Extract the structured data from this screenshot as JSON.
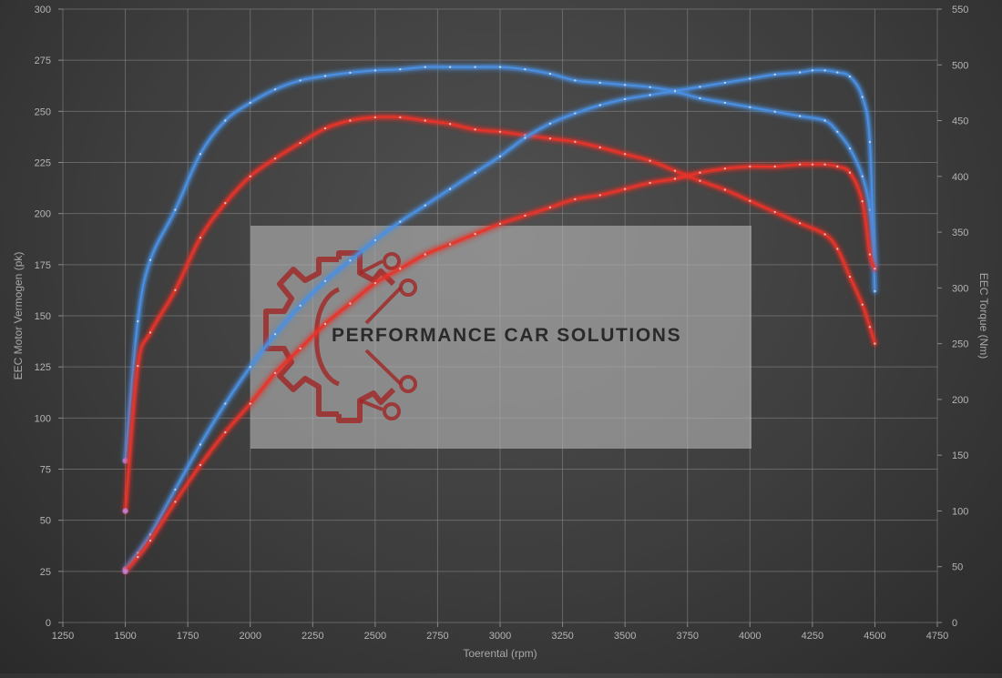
{
  "chart_data": {
    "type": "line",
    "xlabel": "Toerental (rpm)",
    "ylabel_left": "EEC Motor Vermogen (pk)",
    "ylabel_right": "EEC Torque (Nm)",
    "xlim": [
      1250,
      4750
    ],
    "x_ticks": [
      1250,
      1500,
      1750,
      2000,
      2250,
      2500,
      2750,
      3000,
      3250,
      3500,
      3750,
      4000,
      4250,
      4500,
      4750
    ],
    "ylim_left": [
      0,
      300
    ],
    "y_ticks_left": [
      0,
      25,
      50,
      75,
      100,
      125,
      150,
      175,
      200,
      225,
      250,
      275,
      300
    ],
    "ylim_right": [
      0,
      550
    ],
    "y_ticks_right": [
      0,
      50,
      100,
      150,
      200,
      250,
      300,
      350,
      400,
      450,
      500,
      550
    ],
    "grid": true,
    "series": [
      {
        "axis": "right",
        "color": "#4a90e2",
        "x": [
          1500,
          1550,
          1600,
          1700,
          1800,
          1900,
          2000,
          2100,
          2200,
          2300,
          2400,
          2500,
          2600,
          2700,
          2800,
          2900,
          3000,
          3100,
          3200,
          3300,
          3400,
          3500,
          3600,
          3700,
          3800,
          3900,
          4000,
          4100,
          4200,
          4300,
          4350,
          4400,
          4450,
          4480,
          4500
        ],
        "values": [
          145,
          270,
          325,
          370,
          420,
          450,
          466,
          478,
          486,
          490,
          493,
          495,
          496,
          498,
          498,
          498,
          498,
          496,
          492,
          486,
          484,
          482,
          480,
          476,
          470,
          466,
          462,
          458,
          454,
          450,
          440,
          425,
          400,
          370,
          320
        ]
      },
      {
        "axis": "right",
        "color": "#e8332a",
        "x": [
          1500,
          1550,
          1600,
          1700,
          1800,
          1900,
          2000,
          2100,
          2200,
          2300,
          2400,
          2500,
          2600,
          2700,
          2800,
          2900,
          3000,
          3100,
          3200,
          3300,
          3400,
          3500,
          3600,
          3700,
          3800,
          3900,
          4000,
          4100,
          4200,
          4300,
          4350,
          4400,
          4450,
          4480,
          4500
        ],
        "values": [
          100,
          230,
          260,
          298,
          345,
          376,
          400,
          416,
          430,
          443,
          450,
          453,
          453,
          450,
          447,
          442,
          440,
          437,
          434,
          431,
          426,
          420,
          414,
          405,
          396,
          388,
          378,
          368,
          358,
          348,
          335,
          310,
          285,
          265,
          250
        ]
      },
      {
        "axis": "left",
        "color": "#4a90e2",
        "x": [
          1500,
          1550,
          1600,
          1700,
          1800,
          1900,
          2000,
          2100,
          2200,
          2300,
          2400,
          2500,
          2600,
          2700,
          2800,
          2900,
          3000,
          3100,
          3200,
          3300,
          3400,
          3500,
          3600,
          3700,
          3800,
          3900,
          4000,
          4100,
          4200,
          4250,
          4300,
          4350,
          4400,
          4450,
          4480,
          4500
        ],
        "values": [
          26,
          34,
          43,
          65,
          87,
          107,
          125,
          141,
          155,
          167,
          177,
          187,
          196,
          204,
          212,
          220,
          228,
          237,
          244,
          249,
          253,
          256,
          258,
          260,
          262,
          264,
          266,
          268,
          269,
          270,
          270,
          269,
          267,
          257,
          235,
          162
        ]
      },
      {
        "axis": "left",
        "color": "#e8332a",
        "x": [
          1500,
          1550,
          1600,
          1700,
          1800,
          1900,
          2000,
          2100,
          2200,
          2300,
          2400,
          2500,
          2600,
          2700,
          2800,
          2900,
          3000,
          3100,
          3200,
          3300,
          3400,
          3500,
          3600,
          3700,
          3800,
          3900,
          4000,
          4100,
          4200,
          4250,
          4300,
          4350,
          4400,
          4450,
          4480,
          4500
        ],
        "values": [
          25,
          32,
          40,
          59,
          77,
          93,
          107,
          122,
          134,
          146,
          156,
          166,
          173,
          180,
          185,
          190,
          195,
          199,
          203,
          207,
          209,
          212,
          215,
          217,
          220,
          222,
          223,
          223,
          224,
          224,
          224,
          223,
          220,
          206,
          180,
          173
        ]
      }
    ],
    "logo": {
      "text": "PERFORMANCE CAR SOLUTIONS"
    }
  }
}
